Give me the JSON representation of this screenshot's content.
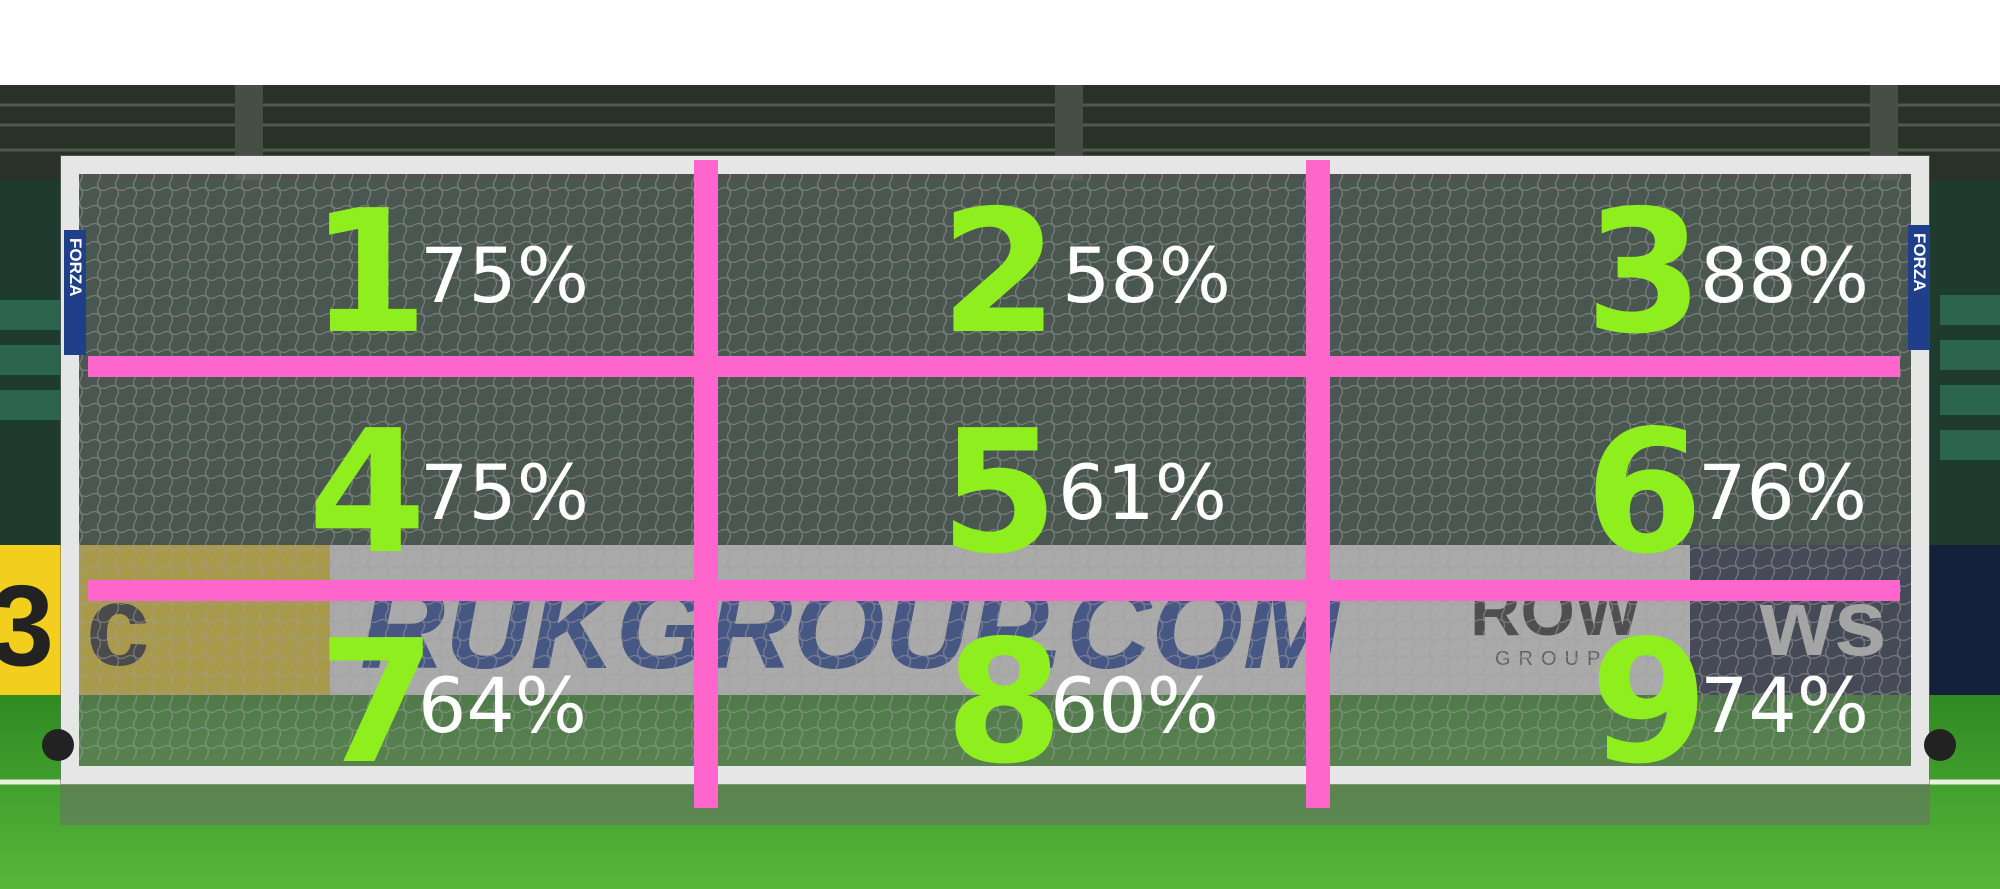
{
  "colors": {
    "number": "#8fee1e",
    "percent": "#ffffff",
    "grid_lines": "#ff66cc",
    "goal_overlay": "#6e6e6e",
    "grass": "#3f9a2c",
    "ad_board_text": "#1a3d9e"
  },
  "background": {
    "ad_board_left": "3.c",
    "ad_board_main": "RUKGROUP.COM",
    "ad_board_logo": "ROW",
    "ad_board_logo_sub": "GROUP",
    "ad_board_right": "ws",
    "goal_brand": "FORZA"
  },
  "zones": [
    {
      "number": "1",
      "percent": "75%"
    },
    {
      "number": "2",
      "percent": "58%"
    },
    {
      "number": "3",
      "percent": "88%"
    },
    {
      "number": "4",
      "percent": "75%"
    },
    {
      "number": "5",
      "percent": "61%"
    },
    {
      "number": "6",
      "percent": "76%"
    },
    {
      "number": "7",
      "percent": "64%"
    },
    {
      "number": "8",
      "percent": "60%"
    },
    {
      "number": "9",
      "percent": "74%"
    }
  ]
}
